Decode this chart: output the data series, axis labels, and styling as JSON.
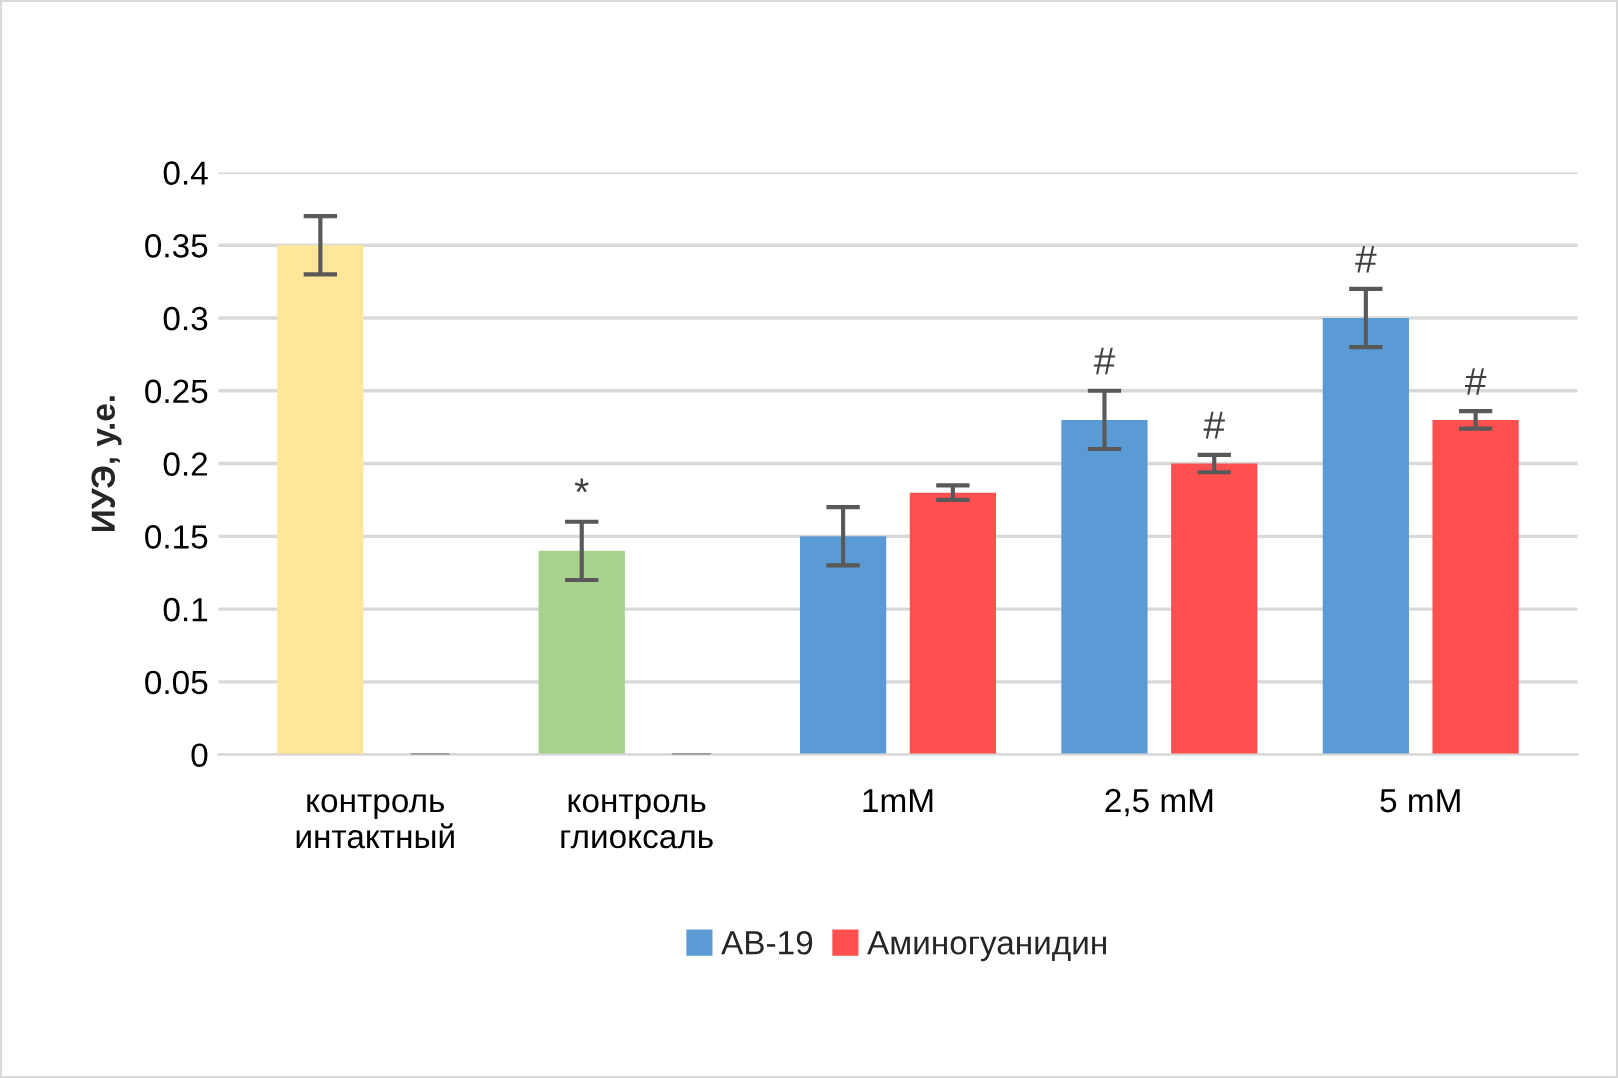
{
  "chart_data": {
    "type": "bar",
    "ylabel": "ИУЭ, у.е.",
    "categories": [
      "контроль\nинтактный",
      "контроль\nглиоксаль",
      "1mM",
      "2,5 mM",
      "5 mM"
    ],
    "series": [
      {
        "name": "АВ-19",
        "color": "#5b9bd5",
        "colors": [
          "#ffe699",
          "#a9d18e",
          "#5b9bd5",
          "#5b9bd5",
          "#5b9bd5"
        ],
        "values": [
          0.35,
          0.14,
          0.15,
          0.23,
          0.3
        ],
        "errors": [
          0.02,
          0.02,
          0.02,
          0.02,
          0.02
        ],
        "value_labels": [
          null,
          "*",
          null,
          "#",
          "#"
        ]
      },
      {
        "name": "Аминогуанидин",
        "color": "#ff5050",
        "values": [
          0,
          0,
          0.18,
          0.2,
          0.23
        ],
        "errors": [
          null,
          null,
          0.005,
          0.006,
          0.006
        ],
        "value_labels": [
          null,
          null,
          null,
          "#",
          "#"
        ]
      }
    ],
    "ylim": [
      0,
      0.4
    ],
    "yticks": [
      0,
      0.05,
      0.1,
      0.15,
      0.2,
      0.25,
      0.3,
      0.35,
      0.4
    ],
    "grid": "y",
    "legend": "bottom"
  }
}
